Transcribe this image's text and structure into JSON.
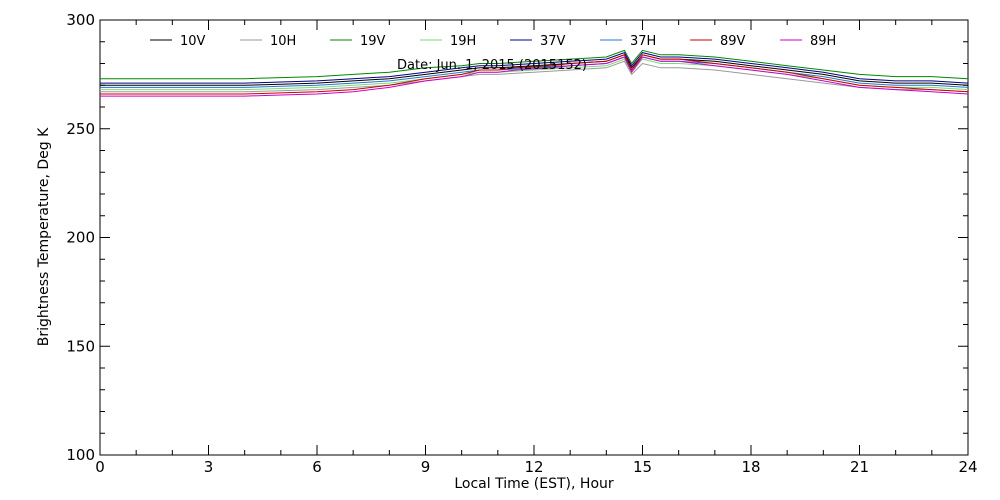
{
  "chart_data": {
    "type": "line",
    "title": "Date: Jun. 1, 2015 (2015152)",
    "xlabel": "Local Time (EST), Hour",
    "ylabel": "Brightness Temperature, Deg K",
    "xlim": [
      0,
      24
    ],
    "ylim": [
      100,
      300
    ],
    "x_ticks": [
      0,
      3,
      6,
      9,
      12,
      15,
      18,
      21,
      24
    ],
    "y_ticks": [
      100,
      150,
      200,
      250,
      300
    ],
    "grid": false,
    "legend_position": "top",
    "x": [
      0,
      1,
      2,
      3,
      4,
      5,
      6,
      7,
      8,
      9,
      10,
      10.5,
      11,
      11.5,
      12,
      12.5,
      13,
      13.5,
      14,
      14.5,
      14.7,
      15,
      15.5,
      16,
      17,
      18,
      19,
      20,
      21,
      22,
      23,
      24
    ],
    "series": [
      {
        "name": "10V",
        "color": "#000000",
        "values": [
          270,
          270,
          270,
          270,
          270,
          270.5,
          271,
          272,
          273,
          275,
          277,
          278,
          278,
          278.5,
          279,
          279.5,
          280,
          280.5,
          281,
          284,
          278,
          284,
          282,
          282,
          281,
          279,
          277,
          275,
          272,
          271,
          271,
          270
        ]
      },
      {
        "name": "10H",
        "color": "#9a9a9a",
        "values": [
          267,
          267,
          267,
          267,
          267,
          267.5,
          268,
          269,
          270,
          272,
          274,
          275,
          275,
          275.5,
          276,
          276.5,
          277,
          277.5,
          278,
          281,
          275,
          280,
          278,
          278,
          277,
          275,
          273,
          271,
          269,
          268,
          268,
          267
        ]
      },
      {
        "name": "19V",
        "color": "#008800",
        "values": [
          273,
          273,
          273,
          273,
          273,
          273.5,
          274,
          275,
          276,
          278,
          279,
          280,
          280,
          280.5,
          281,
          281.5,
          282,
          282.5,
          283,
          286,
          280,
          286,
          284,
          284,
          283,
          281,
          279,
          277,
          275,
          274,
          274,
          273
        ]
      },
      {
        "name": "19H",
        "color": "#77dd77",
        "values": [
          268,
          268,
          268,
          268,
          268,
          268.5,
          269,
          270,
          271,
          273,
          275,
          276,
          276,
          276.5,
          277,
          277.5,
          278,
          278.5,
          279,
          282,
          276,
          282,
          280,
          280,
          279,
          277,
          275,
          273,
          270,
          269,
          269,
          268
        ]
      },
      {
        "name": "37V",
        "color": "#000088",
        "values": [
          271,
          271,
          271,
          271,
          271,
          271.5,
          272,
          273,
          274,
          276,
          278,
          279,
          279,
          279.5,
          280,
          280.5,
          281,
          281.5,
          282,
          285,
          279,
          285,
          283,
          283,
          282,
          280,
          278,
          276,
          273,
          272,
          272,
          271
        ]
      },
      {
        "name": "37H",
        "color": "#2277cc",
        "values": [
          269,
          269,
          269,
          269,
          269,
          269.5,
          270,
          271,
          272,
          274,
          276,
          277,
          277,
          277.5,
          278,
          278.5,
          279,
          279.5,
          280,
          283,
          277,
          283,
          281,
          281,
          280,
          278,
          276,
          274,
          271,
          270,
          270,
          269
        ]
      },
      {
        "name": "89V",
        "color": "#cc0000",
        "values": [
          266,
          266,
          266,
          266,
          266,
          266.5,
          267,
          268,
          270,
          273,
          275,
          277,
          277,
          278,
          278.5,
          279,
          280,
          280.5,
          281,
          284,
          277,
          284,
          282,
          282,
          280,
          278,
          276,
          273,
          270,
          269,
          268,
          267
        ]
      },
      {
        "name": "89H",
        "color": "#cc00cc",
        "values": [
          265,
          265,
          265,
          265,
          265,
          265.5,
          266,
          267,
          269,
          272,
          274,
          276,
          276,
          277,
          277.5,
          278,
          279,
          279.5,
          280,
          283,
          276,
          283,
          281,
          281,
          279,
          277,
          275,
          272,
          269,
          268,
          267,
          266
        ]
      }
    ]
  }
}
